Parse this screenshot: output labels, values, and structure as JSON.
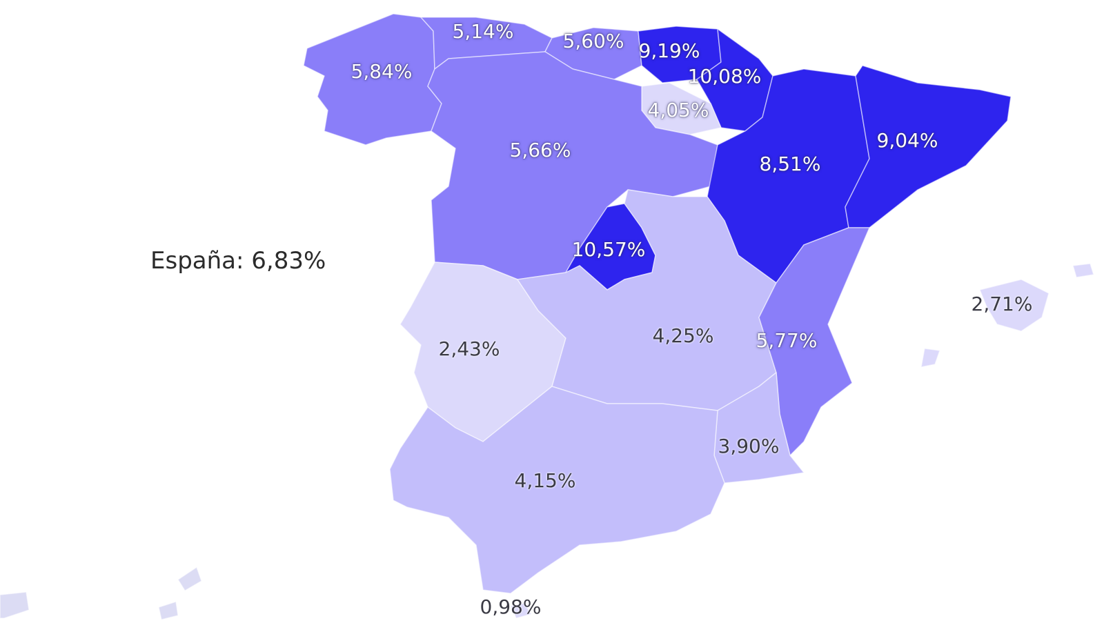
{
  "national": {
    "label": "España: 6,83%"
  },
  "colors": {
    "lightest": "#dcd9fb",
    "light": "#c3befb",
    "medium": "#8a7ef9",
    "strong": "#2e24ee",
    "islands": "#dcdcf4"
  },
  "regions": [
    {
      "id": "galicia",
      "value": "5,84%",
      "tier": "medium"
    },
    {
      "id": "asturias",
      "value": "5,14%",
      "tier": "medium"
    },
    {
      "id": "cantabria",
      "value": "5,60%",
      "tier": "medium"
    },
    {
      "id": "pais-vasco",
      "value": "9,19%",
      "tier": "strong"
    },
    {
      "id": "navarra",
      "value": "10,08%",
      "tier": "strong"
    },
    {
      "id": "la-rioja",
      "value": "4,05%",
      "tier": "lightest"
    },
    {
      "id": "castilla-leon",
      "value": "5,66%",
      "tier": "medium"
    },
    {
      "id": "aragon",
      "value": "8,51%",
      "tier": "strong"
    },
    {
      "id": "cataluna",
      "value": "9,04%",
      "tier": "strong"
    },
    {
      "id": "madrid",
      "value": "10,57%",
      "tier": "strong"
    },
    {
      "id": "extremadura",
      "value": "2,43%",
      "tier": "lightest"
    },
    {
      "id": "castilla-la-mancha",
      "value": "4,25%",
      "tier": "light"
    },
    {
      "id": "valencia",
      "value": "5,77%",
      "tier": "medium"
    },
    {
      "id": "murcia",
      "value": "3,90%",
      "tier": "light"
    },
    {
      "id": "andalucia",
      "value": "4,15%",
      "tier": "light"
    },
    {
      "id": "baleares",
      "value": "2,71%",
      "tier": "lightest"
    },
    {
      "id": "ceuta",
      "value": "0,98%",
      "tier": "lightest"
    }
  ]
}
